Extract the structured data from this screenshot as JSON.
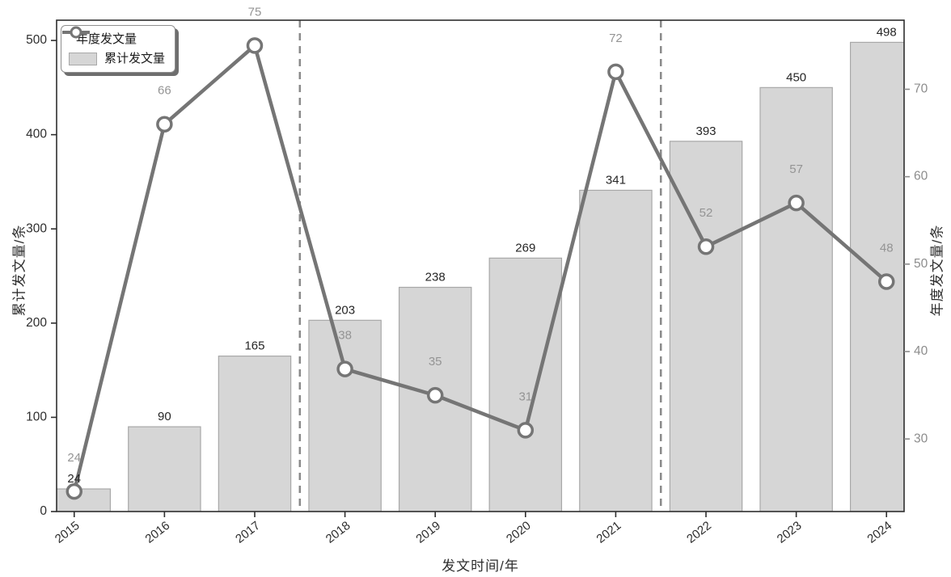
{
  "chart_data": {
    "type": "bar",
    "subtype": "bar-line-combo",
    "title": "",
    "categories": [
      "2015",
      "2016",
      "2017",
      "2018",
      "2019",
      "2020",
      "2021",
      "2022",
      "2023",
      "2024"
    ],
    "series": [
      {
        "name": "年度发文量",
        "render": "line",
        "yaxis": "right",
        "values": [
          24,
          66,
          75,
          38,
          35,
          31,
          72,
          52,
          57,
          48
        ]
      },
      {
        "name": "累计发文量",
        "render": "bar",
        "yaxis": "left",
        "values": [
          24,
          90,
          165,
          203,
          238,
          269,
          341,
          393,
          450,
          498
        ]
      }
    ],
    "xlabel": "发文时间/年",
    "left_axis": {
      "label": "累计发文量/条",
      "ticks": [
        0,
        100,
        200,
        300,
        400,
        500
      ],
      "range": [
        0,
        521.5
      ]
    },
    "right_axis": {
      "label": "年度发文量/条",
      "ticks": [
        30,
        40,
        50,
        60,
        70
      ],
      "range": [
        21.7,
        77.9
      ]
    },
    "x_range": [
      -0.195,
      9.195
    ],
    "bar_width": 0.8,
    "dashed_vlines_x": [
      2.5,
      6.5
    ],
    "grid": false,
    "legend_position": "upper left",
    "value_labels": {
      "bar_series_labeled": true,
      "line_series_labeled": true
    }
  },
  "legend": {
    "items": [
      {
        "label": "年度发文量",
        "swatch": "line-marker"
      },
      {
        "label": "累计发文量",
        "swatch": "patch"
      }
    ]
  },
  "colors": {
    "background": "#ffffff",
    "bar_fill": "#d6d6d6",
    "bar_edge": "#a8a8a8",
    "line": "#757575",
    "marker_fill": "#ffffff",
    "marker_edge": "#757575",
    "bar_label": "#262626",
    "line_label": "#949494",
    "spine": "#2e2e2e",
    "left_tick_label": "#2e2e2e",
    "right_tick_label": "#8c8c8c",
    "x_tick_label": "#2e2e2e",
    "dashed_line": "#8a8a8a"
  }
}
